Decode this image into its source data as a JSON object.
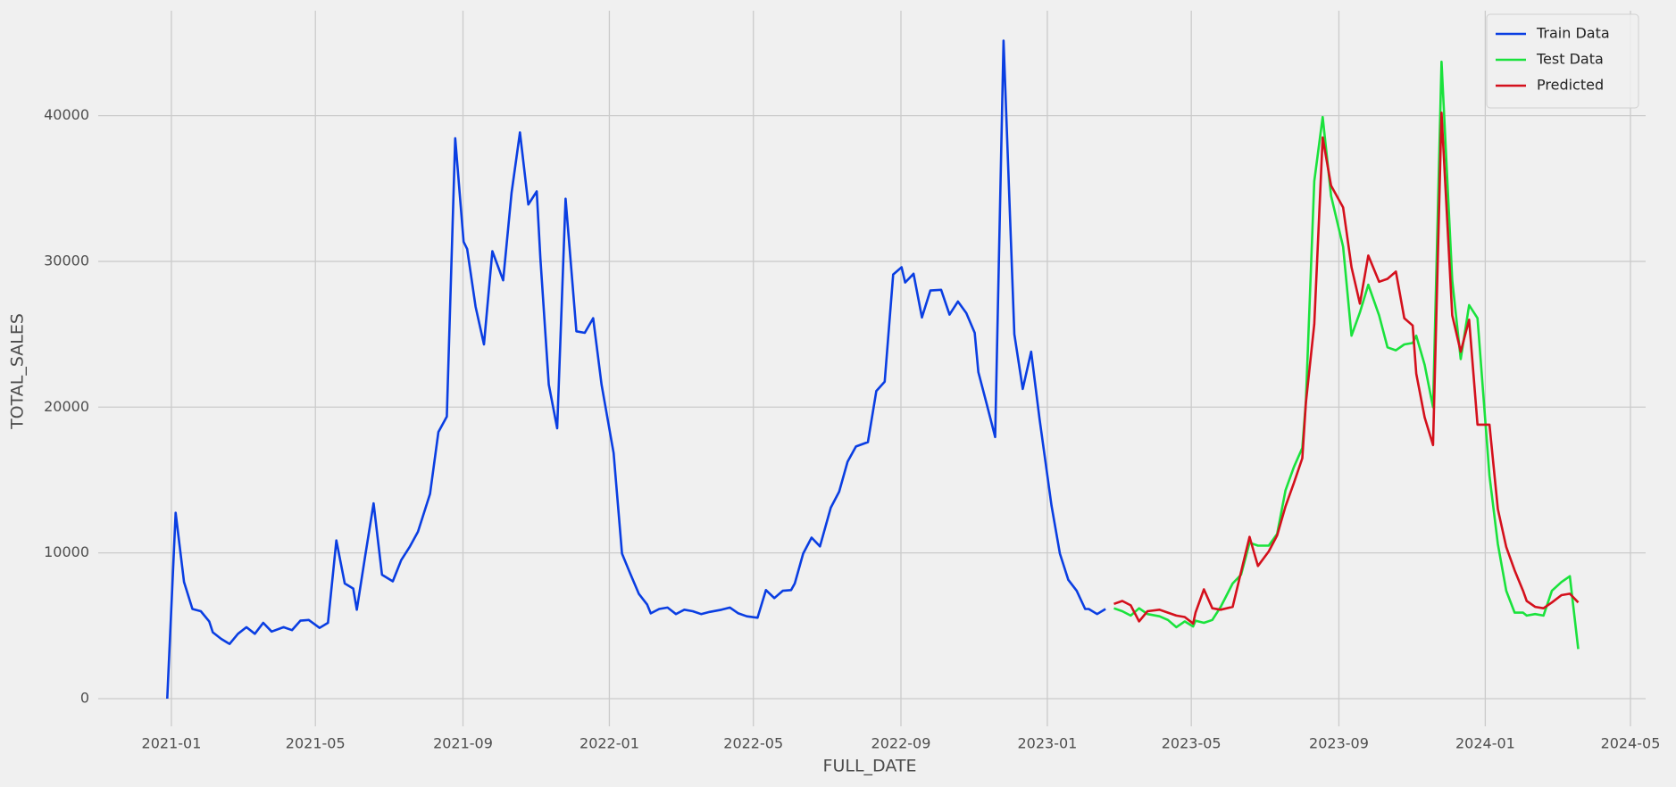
{
  "chart_data": {
    "type": "line",
    "xlabel": "FULL_DATE",
    "ylabel": "TOTAL_SALES",
    "xlim": [
      "2020-11",
      "2024-05"
    ],
    "xticks": [
      "2021-01",
      "2021-05",
      "2021-09",
      "2022-01",
      "2022-05",
      "2022-09",
      "2023-01",
      "2023-05",
      "2023-09",
      "2024-01",
      "2024-05"
    ],
    "ylim": [
      -1900,
      47200
    ],
    "yticks": [
      0,
      10000,
      20000,
      30000,
      40000
    ],
    "grid": true,
    "legend": "upper right",
    "series": [
      {
        "name": "Train Data",
        "color": "#0a3ee2",
        "x": [
          "2020-12",
          "2021-01",
          "2021-01",
          "2021-01",
          "2021-01",
          "2021-01",
          "2021-02",
          "2021-02",
          "2021-02",
          "2021-02",
          "2021-03",
          "2021-03",
          "2021-03",
          "2021-03",
          "2021-04",
          "2021-04",
          "2021-04",
          "2021-04",
          "2021-05",
          "2021-05",
          "2021-05",
          "2021-05",
          "2021-05",
          "2021-06",
          "2021-06",
          "2021-06",
          "2021-06",
          "2021-07",
          "2021-07",
          "2021-07",
          "2021-07",
          "2021-08",
          "2021-08",
          "2021-08",
          "2021-08",
          "2021-08",
          "2021-09",
          "2021-09",
          "2021-09",
          "2021-09",
          "2021-10",
          "2021-10",
          "2021-10",
          "2021-10",
          "2021-10",
          "2021-11",
          "2021-11",
          "2021-11",
          "2021-11",
          "2021-12",
          "2021-12",
          "2021-12",
          "2021-12",
          "2022-01",
          "2022-01",
          "2022-01",
          "2022-01",
          "2022-01",
          "2022-02",
          "2022-02",
          "2022-02",
          "2022-02",
          "2022-03",
          "2022-03",
          "2022-03",
          "2022-03",
          "2022-04",
          "2022-04",
          "2022-04",
          "2022-04",
          "2022-05",
          "2022-05",
          "2022-05",
          "2022-05",
          "2022-05",
          "2022-06",
          "2022-06",
          "2022-06",
          "2022-06",
          "2022-07",
          "2022-07",
          "2022-07",
          "2022-07",
          "2022-08",
          "2022-08",
          "2022-08",
          "2022-08",
          "2022-08",
          "2022-09",
          "2022-09",
          "2022-09",
          "2022-09",
          "2022-10",
          "2022-10",
          "2022-10",
          "2022-10",
          "2022-10",
          "2022-11",
          "2022-11",
          "2022-11",
          "2022-11",
          "2022-12",
          "2022-12",
          "2022-12",
          "2022-12",
          "2023-01",
          "2023-01",
          "2023-01",
          "2023-01",
          "2023-01",
          "2023-02",
          "2023-02",
          "2023-02"
        ],
        "values": [
          0,
          12750,
          8000,
          6150,
          6000,
          5300,
          4550,
          4100,
          3750,
          4450,
          4900,
          4450,
          5200,
          4600,
          4900,
          4700,
          5350,
          5400,
          4850,
          5200,
          10850,
          7900,
          7550,
          6100,
          9800,
          13400,
          8500,
          8050,
          9500,
          10400,
          11450,
          14050,
          18300,
          19350,
          38450,
          31350,
          30850,
          26900,
          24300,
          30700,
          28700,
          34700,
          38850,
          33900,
          34800,
          30200,
          21550,
          18550,
          34300,
          25200,
          25100,
          26100,
          21550,
          16850,
          9950,
          8550,
          7200,
          6450,
          5850,
          6150,
          6250,
          5800,
          6100,
          6000,
          5800,
          5950,
          6100,
          6250,
          5850,
          5650,
          5550,
          7450,
          6900,
          7400,
          7450,
          7900,
          9950,
          11050,
          10450,
          13100,
          14200,
          16250,
          17300,
          17600,
          21100,
          21750,
          29100,
          29600,
          28550,
          29150,
          26150,
          28000,
          28050,
          26350,
          27250,
          26450,
          25100,
          22400,
          20200,
          17950,
          45150,
          25000,
          21250,
          23800,
          19200,
          13250,
          9950,
          8150,
          7400,
          6150,
          6150,
          5800,
          6150
        ]
      },
      {
        "name": "Test Data",
        "color": "#1ae23c",
        "x": [
          "2023-02",
          "2023-03",
          "2023-03",
          "2023-03",
          "2023-03",
          "2023-04",
          "2023-04",
          "2023-04",
          "2023-04",
          "2023-04",
          "2023-05",
          "2023-05",
          "2023-05",
          "2023-05",
          "2023-06",
          "2023-06",
          "2023-06",
          "2023-06",
          "2023-07",
          "2023-07",
          "2023-07",
          "2023-07",
          "2023-07",
          "2023-08",
          "2023-08",
          "2023-08",
          "2023-08",
          "2023-09",
          "2023-09",
          "2023-09",
          "2023-09",
          "2023-10",
          "2023-10",
          "2023-10",
          "2023-10",
          "2023-10",
          "2023-11",
          "2023-11",
          "2023-11",
          "2023-11",
          "2023-12",
          "2023-12",
          "2023-12",
          "2023-12",
          "2024-01",
          "2024-01",
          "2024-01",
          "2024-01",
          "2024-01",
          "2024-02",
          "2024-02",
          "2024-02",
          "2024-02",
          "2024-03",
          "2024-03",
          "2024-03"
        ],
        "values": [
          6200,
          6000,
          5700,
          6200,
          5800,
          5650,
          5400,
          4900,
          5300,
          4950,
          5350,
          5200,
          5400,
          6300,
          7900,
          8500,
          10700,
          10500,
          10500,
          11300,
          14300,
          15900,
          17200,
          20400,
          35500,
          39900,
          34500,
          31000,
          24900,
          26500,
          28400,
          26300,
          24100,
          23900,
          24300,
          24400,
          24900,
          22900,
          20000,
          43700,
          28700,
          23300,
          27000,
          26100,
          15300,
          10600,
          7400,
          5900,
          5900,
          5700,
          5800,
          5700,
          7400,
          8000,
          8400,
          3400
        ]
      },
      {
        "name": "Predicted",
        "color": "#d4101c",
        "x": [
          "2023-02",
          "2023-03",
          "2023-03",
          "2023-03",
          "2023-03",
          "2023-04",
          "2023-04",
          "2023-04",
          "2023-04",
          "2023-04",
          "2023-05",
          "2023-05",
          "2023-05",
          "2023-05",
          "2023-06",
          "2023-06",
          "2023-06",
          "2023-06",
          "2023-07",
          "2023-07",
          "2023-07",
          "2023-07",
          "2023-07",
          "2023-08",
          "2023-08",
          "2023-08",
          "2023-08",
          "2023-09",
          "2023-09",
          "2023-09",
          "2023-09",
          "2023-10",
          "2023-10",
          "2023-10",
          "2023-10",
          "2023-10",
          "2023-11",
          "2023-11",
          "2023-11",
          "2023-11",
          "2023-12",
          "2023-12",
          "2023-12",
          "2023-12",
          "2024-01",
          "2024-01",
          "2024-01",
          "2024-01",
          "2024-01",
          "2024-02",
          "2024-02",
          "2024-02",
          "2024-02",
          "2024-03",
          "2024-03",
          "2024-03"
        ],
        "values": [
          6500,
          6700,
          6400,
          5300,
          6000,
          6100,
          5900,
          5700,
          5600,
          5150,
          5900,
          7500,
          6200,
          6100,
          6300,
          8700,
          11100,
          9100,
          10100,
          11200,
          13200,
          14800,
          16500,
          20300,
          25700,
          38500,
          35200,
          33700,
          29600,
          27100,
          30400,
          28600,
          28800,
          29300,
          26100,
          25600,
          22300,
          19300,
          17400,
          40200,
          26300,
          23800,
          26000,
          18800,
          18800,
          13000,
          10400,
          8800,
          7400,
          6700,
          6300,
          6200,
          6600,
          7100,
          7200,
          6600
        ]
      }
    ]
  }
}
